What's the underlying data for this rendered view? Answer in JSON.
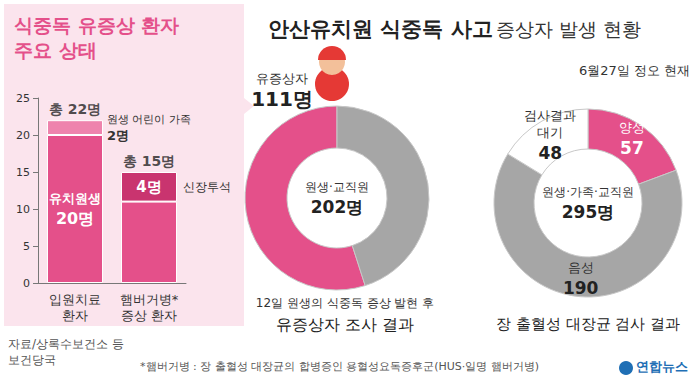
{
  "page": {
    "title": "안산유치원 식중독 사고",
    "title_suffix": "증상자 발생 현황",
    "date": "6월27일 정오 현재",
    "source": "자료/상록수보건소 등\n보건당국",
    "footnote": "*햄버거병 : 장 출혈성 대장균의 합병증인 용혈성요독증후군(HUS·일명 햄버거병)",
    "credit": "연합뉴스"
  },
  "chart_data": [
    {
      "type": "bar",
      "title": "식중독 유증상 환자\n주요 상태",
      "categories": [
        "입원치료 환자",
        "햄버거병* 증상 환자"
      ],
      "stacked": true,
      "data_labels": true,
      "grid": false,
      "ylim": [
        0,
        25
      ],
      "yticks": [
        0,
        5,
        10,
        15,
        20,
        25
      ],
      "series": [
        {
          "name": "유치원생",
          "color": "#e4508a",
          "values": [
            20,
            11
          ],
          "value_labels": [
            "20명",
            null
          ]
        },
        {
          "name": "원생 어린이 가족",
          "color": "#ee83ad",
          "values": [
            2,
            null
          ],
          "value_labels": [
            "2명",
            null
          ]
        },
        {
          "name": "신장투석",
          "color": "#c9346f",
          "values": [
            null,
            4
          ],
          "value_labels": [
            null,
            "4명"
          ]
        }
      ],
      "totals": [
        22,
        15
      ],
      "total_labels": [
        "총 22명",
        "총 15명"
      ]
    },
    {
      "type": "donut",
      "title": "유증상자 조사 결과",
      "subtitle": "12일 원생의 식중독 증상 발현 후",
      "center_text": "원생·교직원\n202명",
      "categories": [
        "유증상자",
        null
      ],
      "values": [
        111,
        91
      ],
      "value_labels": [
        "111명",
        null
      ],
      "colors": [
        "#e4508a",
        "#a6a6a6"
      ],
      "data_labels": true
    },
    {
      "type": "donut",
      "title": "장 출혈성 대장균 검사 결과",
      "center_text": "원생·가족·교직원\n295명",
      "categories": [
        "양성",
        "음성",
        "검사결과 대기"
      ],
      "values": [
        57,
        190,
        48
      ],
      "colors": [
        "#e4508a",
        "#a6a6a6",
        "#ffffff"
      ],
      "data_labels": true
    }
  ]
}
